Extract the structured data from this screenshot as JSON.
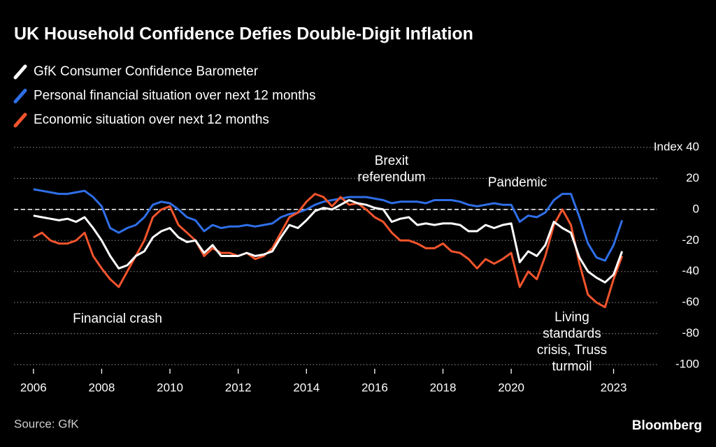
{
  "chart_data": {
    "type": "line",
    "title": "UK Household Confidence Defies Double-Digit Inflation",
    "x": [
      2006,
      2006.25,
      2006.5,
      2006.75,
      2007,
      2007.25,
      2007.5,
      2007.75,
      2008,
      2008.25,
      2008.5,
      2008.75,
      2009,
      2009.25,
      2009.5,
      2009.75,
      2010,
      2010.25,
      2010.5,
      2010.75,
      2011,
      2011.25,
      2011.5,
      2011.75,
      2012,
      2012.25,
      2012.5,
      2012.75,
      2013,
      2013.25,
      2013.5,
      2013.75,
      2014,
      2014.25,
      2014.5,
      2014.75,
      2015,
      2015.25,
      2015.5,
      2015.75,
      2016,
      2016.25,
      2016.5,
      2016.75,
      2017,
      2017.25,
      2017.5,
      2017.75,
      2018,
      2018.25,
      2018.5,
      2018.75,
      2019,
      2019.25,
      2019.5,
      2019.75,
      2020,
      2020.25,
      2020.5,
      2020.75,
      2021,
      2021.25,
      2021.5,
      2021.75,
      2022,
      2022.25,
      2022.5,
      2022.75,
      2023,
      2023.25
    ],
    "series": [
      {
        "name": "GfK Consumer Confidence Barometer",
        "color": "#ffffff",
        "values": [
          -4,
          -5,
          -6,
          -7,
          -6,
          -8,
          -5,
          -12,
          -20,
          -30,
          -38,
          -36,
          -30,
          -27,
          -18,
          -14,
          -12,
          -18,
          -21,
          -20,
          -28,
          -23,
          -30,
          -30,
          -30,
          -28,
          -30,
          -29,
          -27,
          -18,
          -10,
          -12,
          -7,
          -1,
          1,
          0,
          3,
          6,
          4,
          3,
          1,
          0,
          -8,
          -6,
          -5,
          -10,
          -9,
          -10,
          -9,
          -9,
          -10,
          -14,
          -14,
          -10,
          -12,
          -10,
          -9,
          -34,
          -27,
          -30,
          -23,
          -8,
          -12,
          -15,
          -31,
          -40,
          -44,
          -47,
          -42,
          -27
        ]
      },
      {
        "name": "Personal financial situation over next 12 months",
        "color": "#2f6fe8",
        "values": [
          13,
          12,
          11,
          10,
          10,
          11,
          12,
          8,
          2,
          -12,
          -15,
          -12,
          -10,
          -5,
          3,
          5,
          4,
          0,
          -5,
          -7,
          -14,
          -10,
          -12,
          -11,
          -11,
          -10,
          -11,
          -10,
          -9,
          -5,
          -3,
          -2,
          0,
          3,
          5,
          6,
          7,
          8,
          8,
          8,
          7,
          6,
          4,
          5,
          5,
          5,
          4,
          6,
          6,
          6,
          5,
          3,
          2,
          3,
          4,
          3,
          3,
          -8,
          -4,
          -5,
          -2,
          6,
          10,
          10,
          -5,
          -22,
          -31,
          -33,
          -23,
          -7
        ]
      },
      {
        "name": "Economic situation over next 12 months",
        "color": "#f2542d",
        "values": [
          -18,
          -15,
          -20,
          -22,
          -22,
          -20,
          -15,
          -30,
          -38,
          -45,
          -50,
          -40,
          -30,
          -20,
          -5,
          0,
          2,
          -10,
          -15,
          -20,
          -30,
          -25,
          -28,
          -28,
          -30,
          -28,
          -32,
          -30,
          -25,
          -15,
          -5,
          -2,
          5,
          10,
          8,
          2,
          8,
          3,
          4,
          0,
          -5,
          -8,
          -15,
          -20,
          -20,
          -22,
          -25,
          -25,
          -22,
          -27,
          -28,
          -32,
          -38,
          -32,
          -35,
          -32,
          -28,
          -50,
          -40,
          -45,
          -30,
          -10,
          0,
          -10,
          -35,
          -55,
          -60,
          -63,
          -45,
          -30
        ]
      }
    ],
    "xlim": [
      2005.43,
      2024.28
    ],
    "xticks": [
      2006,
      2008,
      2010,
      2012,
      2014,
      2016,
      2018,
      2020,
      2023
    ],
    "ylim": [
      -100,
      40
    ],
    "yticks": [
      {
        "value": 40,
        "label": "Index 40"
      },
      20,
      0,
      -20,
      -40,
      -60,
      -80,
      -100
    ],
    "grid": true,
    "zero_line": true,
    "annotations": [
      [
        "Brexit",
        "referendum"
      ],
      [
        "Pandemic"
      ],
      [
        "Financial crash"
      ],
      [
        "Living",
        "standards",
        "crisis, Truss",
        "turmoil"
      ]
    ],
    "source": "Source: GfK",
    "brand": "Bloomberg"
  }
}
